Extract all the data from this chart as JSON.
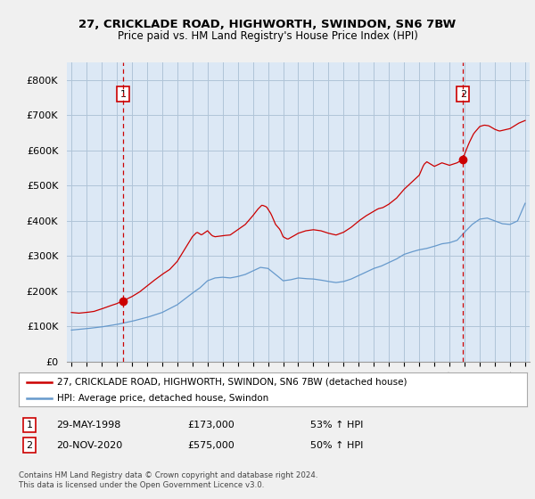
{
  "title_line1": "27, CRICKLADE ROAD, HIGHWORTH, SWINDON, SN6 7BW",
  "title_line2": "Price paid vs. HM Land Registry's House Price Index (HPI)",
  "legend_label_red": "27, CRICKLADE ROAD, HIGHWORTH, SWINDON, SN6 7BW (detached house)",
  "legend_label_blue": "HPI: Average price, detached house, Swindon",
  "annotation1": {
    "num": "1",
    "date": "29-MAY-1998",
    "price": "£173,000",
    "change": "53% ↑ HPI"
  },
  "annotation2": {
    "num": "2",
    "date": "20-NOV-2020",
    "price": "£575,000",
    "change": "50% ↑ HPI"
  },
  "footer": "Contains HM Land Registry data © Crown copyright and database right 2024.\nThis data is licensed under the Open Government Licence v3.0.",
  "ylim": [
    0,
    850000
  ],
  "yticks": [
    0,
    100000,
    200000,
    300000,
    400000,
    500000,
    600000,
    700000,
    800000
  ],
  "ytick_labels": [
    "£0",
    "£100K",
    "£200K",
    "£300K",
    "£400K",
    "£500K",
    "£600K",
    "£700K",
    "£800K"
  ],
  "color_red": "#cc0000",
  "color_blue": "#6699cc",
  "background_color": "#f0f0f0",
  "plot_bg_color": "#dce8f5",
  "grid_color": "#b0c4d8",
  "marker1_x": 1998.41,
  "marker1_y": 173000,
  "marker2_x": 2020.9,
  "marker2_y": 575000,
  "vline1_x": 1998.41,
  "vline2_x": 2020.9,
  "xlim_left": 1994.7,
  "xlim_right": 2025.3
}
